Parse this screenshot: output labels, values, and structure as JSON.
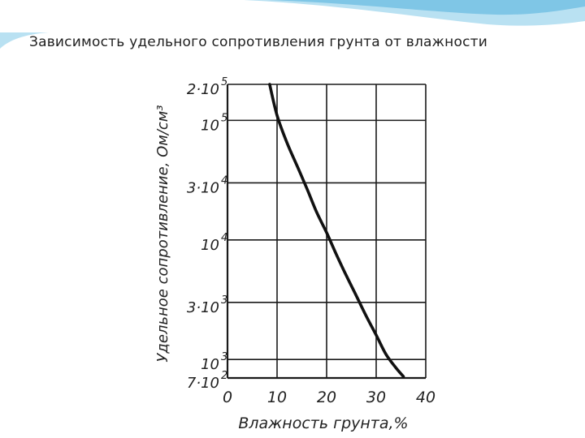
{
  "slide": {
    "title": "Зависимость удельного сопротивления грунта от влажности"
  },
  "colors": {
    "wave_primary": "#7fc6e6",
    "wave_secondary": "#b9e1f2",
    "curve": "#111111",
    "grid": "#1a1a1a"
  },
  "chart_data": {
    "type": "line",
    "title": "Зависимость удельного сопротивления грунта от влажности",
    "xlabel": "Влажность грунта,%",
    "ylabel": "Удельное сопротивление, Ом/см³",
    "x_scale": "linear",
    "y_scale": "log",
    "xlim": [
      0,
      40
    ],
    "x_ticks": [
      {
        "value": 0,
        "label": "0"
      },
      {
        "value": 10,
        "label": "10"
      },
      {
        "value": 20,
        "label": "20"
      },
      {
        "value": 30,
        "label": "30"
      },
      {
        "value": 40,
        "label": "40"
      }
    ],
    "y_ticks": [
      {
        "value": 700,
        "base": "7·10",
        "exp": "2"
      },
      {
        "value": 1000,
        "base": "10",
        "exp": "3"
      },
      {
        "value": 3000,
        "base": "3·10",
        "exp": "3"
      },
      {
        "value": 10000,
        "base": "10",
        "exp": "4"
      },
      {
        "value": 30000,
        "base": "3·10",
        "exp": "4"
      },
      {
        "value": 100000,
        "base": "10",
        "exp": "5"
      },
      {
        "value": 200000,
        "base": "2·10",
        "exp": "5"
      }
    ],
    "grid": true,
    "series": [
      {
        "x": [
          8.5,
          10,
          12,
          14,
          16,
          18,
          20,
          22,
          24,
          26,
          28,
          30,
          32,
          34,
          35.5
        ],
        "y": [
          200000,
          110000,
          65000,
          42000,
          27000,
          17000,
          11500,
          7500,
          5000,
          3400,
          2300,
          1600,
          1100,
          850,
          720
        ]
      }
    ]
  }
}
